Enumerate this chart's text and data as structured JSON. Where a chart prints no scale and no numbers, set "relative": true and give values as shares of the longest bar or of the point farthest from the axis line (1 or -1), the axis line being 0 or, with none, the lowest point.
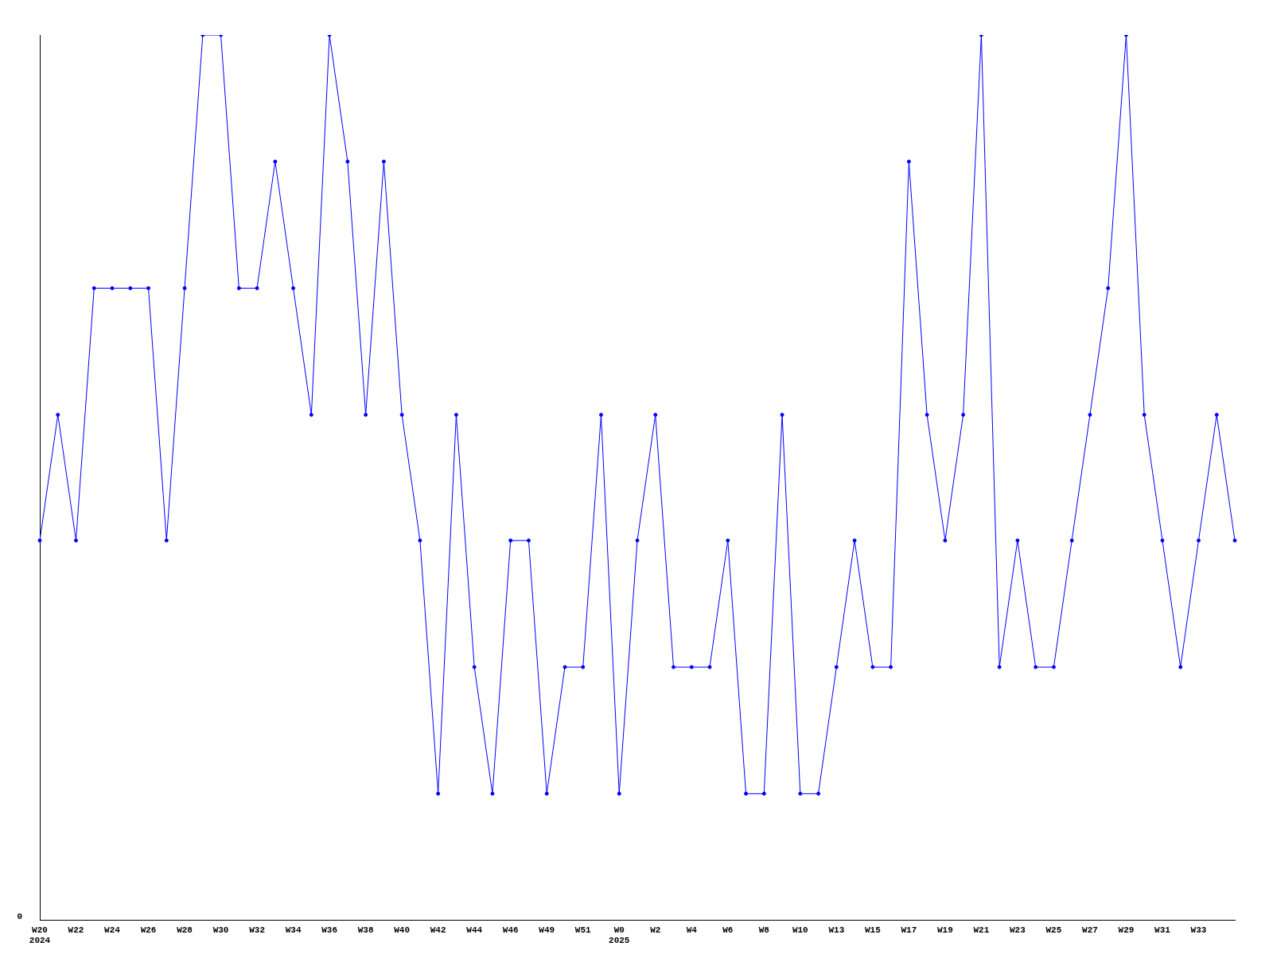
{
  "chart_data": {
    "type": "line",
    "relative": true,
    "color": "#0000ff",
    "marker": "circle",
    "grid": false,
    "legend": false,
    "annotations": [
      "0"
    ],
    "categories": [
      "W20\n2024",
      null,
      "W22",
      null,
      "W24",
      null,
      "W26",
      null,
      "W28",
      null,
      "W30",
      null,
      "W32",
      null,
      "W34",
      null,
      "W36",
      null,
      "W38",
      null,
      "W40",
      null,
      "W42",
      null,
      "W44",
      null,
      "W46",
      null,
      "W49",
      null,
      "W51",
      null,
      "W0\n2025",
      null,
      "W2",
      null,
      "W4",
      null,
      "W6",
      null,
      "W8",
      null,
      "W10",
      null,
      "W13",
      null,
      "W15",
      null,
      "W17",
      null,
      "W19",
      null,
      "W21",
      null,
      "W23",
      null,
      "W25",
      null,
      "W27",
      null,
      "W29",
      null,
      "W31",
      null,
      "W33",
      null,
      null
    ],
    "values": [
      0.429,
      0.571,
      0.429,
      0.714,
      0.714,
      0.714,
      0.714,
      0.429,
      0.714,
      1,
      1,
      0.714,
      0.714,
      0.857,
      0.714,
      0.571,
      1,
      0.857,
      0.571,
      0.857,
      0.571,
      0.429,
      0.143,
      0.571,
      0.286,
      0.143,
      0.429,
      0.429,
      0.143,
      0.286,
      0.286,
      0.571,
      0.143,
      0.429,
      0.571,
      0.286,
      0.286,
      0.286,
      0.429,
      0.143,
      0.143,
      0.571,
      0.143,
      0.143,
      0.286,
      0.429,
      0.286,
      0.286,
      0.857,
      0.571,
      0.429,
      0.571,
      1,
      0.286,
      0.429,
      0.286,
      0.286,
      0.429,
      0.571,
      0.714,
      1,
      0.571,
      0.429,
      0.286,
      0.429,
      0.571,
      0.429
    ]
  }
}
